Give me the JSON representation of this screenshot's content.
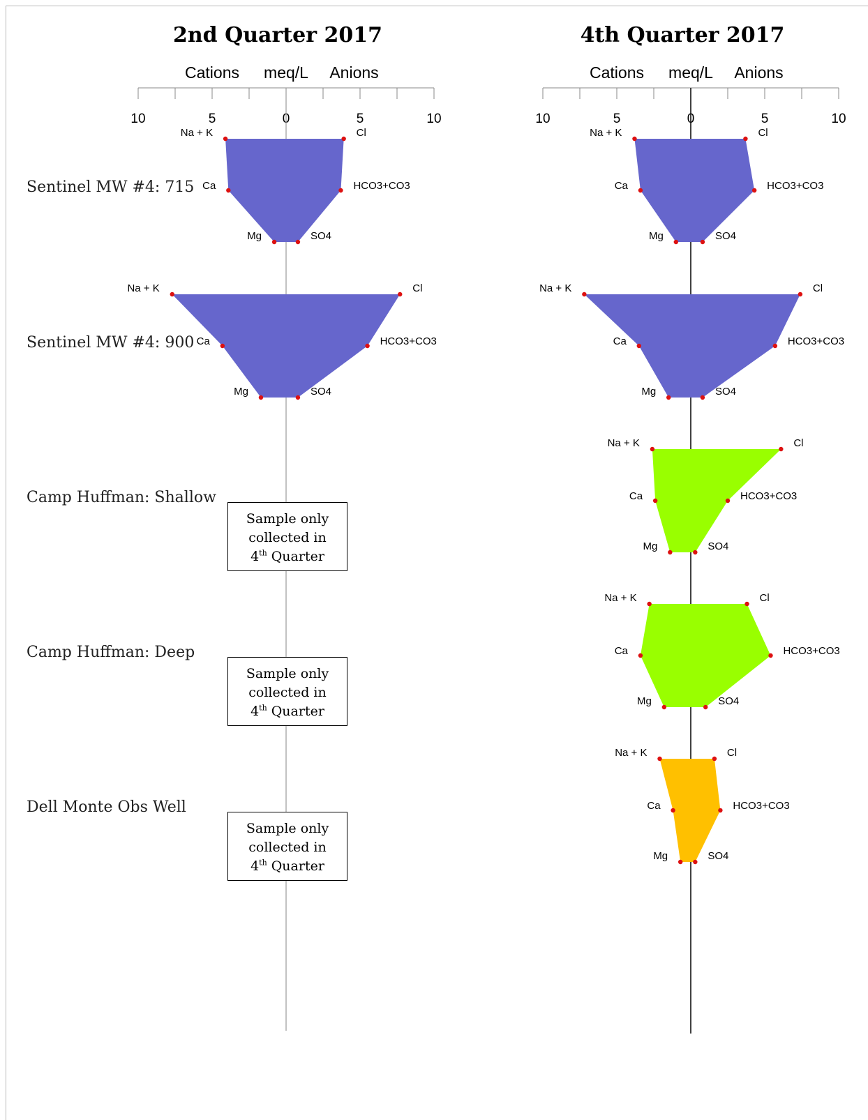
{
  "chart_data": [
    {
      "type": "stiff",
      "title": "2nd Quarter 2017",
      "axis_header": {
        "left": "Cations",
        "center": "meq/L",
        "right": "Anions"
      },
      "ticks": [
        "10",
        "5",
        "0",
        "5",
        "10"
      ],
      "xlim": [
        -10,
        10
      ],
      "ion_labels": {
        "cations": [
          "Na + K",
          "Ca",
          "Mg"
        ],
        "anions": [
          "Cl",
          "HCO3+CO3",
          "SO4"
        ]
      },
      "samples": [
        {
          "well": "Sentinel MW #4: 715",
          "color": "#6666CC",
          "cations": [
            4.1,
            3.9,
            0.8
          ],
          "anions": [
            3.9,
            3.7,
            0.8
          ]
        },
        {
          "well": "Sentinel MW #4: 900",
          "color": "#6666CC",
          "cations": [
            7.7,
            4.3,
            1.7
          ],
          "anions": [
            7.7,
            5.5,
            0.8
          ]
        },
        {
          "well": "Camp Huffman: Shallow",
          "note": [
            "Sample only",
            "collected in",
            "4",
            "th",
            " Quarter"
          ]
        },
        {
          "well": "Camp Huffman: Deep",
          "note": [
            "Sample only",
            "collected in",
            "4",
            "th",
            " Quarter"
          ]
        },
        {
          "well": "Dell Monte Obs Well",
          "note": [
            "Sample only",
            "collected in",
            "4",
            "th",
            " Quarter"
          ]
        }
      ]
    },
    {
      "type": "stiff",
      "title": "4th Quarter 2017",
      "axis_header": {
        "left": "Cations",
        "center": "meq/L",
        "right": "Anions"
      },
      "ticks": [
        "10",
        "5",
        "0",
        "5",
        "10"
      ],
      "xlim": [
        -10,
        10
      ],
      "ion_labels": {
        "cations": [
          "Na + K",
          "Ca",
          "Mg"
        ],
        "anions": [
          "Cl",
          "HCO3+CO3",
          "SO4"
        ]
      },
      "samples": [
        {
          "well": "Sentinel MW #4: 715",
          "color": "#6666CC",
          "cations": [
            3.8,
            3.4,
            1.0
          ],
          "anions": [
            3.7,
            4.3,
            0.8
          ]
        },
        {
          "well": "Sentinel MW #4: 900",
          "color": "#6666CC",
          "cations": [
            7.2,
            3.5,
            1.5
          ],
          "anions": [
            7.4,
            5.7,
            0.8
          ]
        },
        {
          "well": "Camp Huffman: Shallow",
          "color": "#99FF00",
          "cations": [
            2.6,
            2.4,
            1.4
          ],
          "anions": [
            6.1,
            2.5,
            0.3
          ]
        },
        {
          "well": "Camp Huffman: Deep",
          "color": "#99FF00",
          "cations": [
            2.8,
            3.4,
            1.8
          ],
          "anions": [
            3.8,
            5.4,
            1.0
          ]
        },
        {
          "well": "Dell Monte Obs Well",
          "color": "#FFC000",
          "cations": [
            2.1,
            1.2,
            0.7
          ],
          "anions": [
            1.6,
            2.0,
            0.3
          ]
        }
      ]
    }
  ]
}
